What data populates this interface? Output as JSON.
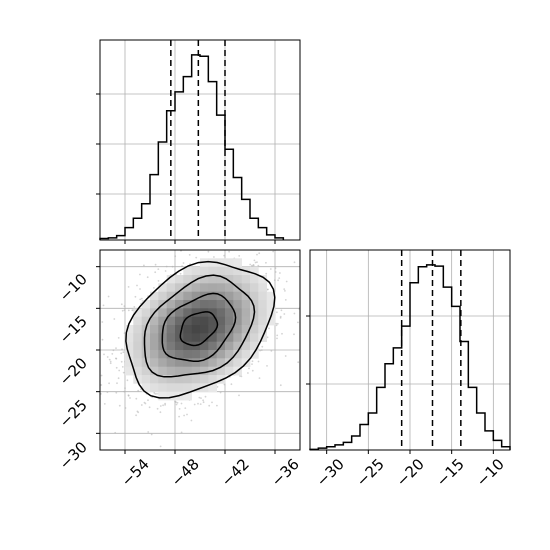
{
  "chart_data": [
    {
      "type": "histogram",
      "panel": "marginal-x",
      "bins": [
        -57.0,
        -56.0,
        -55.0,
        -54.0,
        -53.0,
        -52.0,
        -51.0,
        -50.0,
        -49.0,
        -48.0,
        -47.0,
        -46.0,
        -45.0,
        -44.0,
        -43.0,
        -42.0,
        -41.0,
        -40.0,
        -39.0,
        -38.0,
        -37.0,
        -36.0,
        -35.0
      ],
      "counts": [
        2,
        3,
        6,
        17,
        30,
        50,
        90,
        135,
        178,
        204,
        225,
        255,
        253,
        218,
        172,
        125,
        86,
        56,
        30,
        17,
        7,
        3
      ],
      "quantiles": [
        -48.5,
        -45.2,
        -42.0
      ],
      "xlim": [
        -57,
        -33
      ],
      "grid": true,
      "style": "step",
      "quantile_line": "dashed"
    },
    {
      "type": "histogram",
      "panel": "marginal-y",
      "bins": [
        -32.0,
        -31.0,
        -30.0,
        -29.0,
        -28.0,
        -27.0,
        -26.0,
        -25.0,
        -24.0,
        -23.0,
        -22.0,
        -21.0,
        -20.0,
        -19.0,
        -18.0,
        -17.0,
        -16.0,
        -15.0,
        -14.0,
        -13.0,
        -12.0,
        -11.0,
        -10.0,
        -9.0,
        -8.0
      ],
      "counts": [
        1,
        3,
        5,
        8,
        12,
        22,
        40,
        58,
        98,
        135,
        160,
        194,
        262,
        287,
        290,
        288,
        255,
        225,
        170,
        98,
        58,
        30,
        15,
        5
      ],
      "quantiles": [
        -21.0,
        -17.3,
        -13.9
      ],
      "xlim": [
        -32,
        -8
      ],
      "grid": true,
      "style": "step",
      "quantile_line": "dashed"
    },
    {
      "type": "scatter-density",
      "panel": "joint",
      "x_center": -45.2,
      "y_center": -17.4,
      "x_sigma": 4.4,
      "y_sigma": 4.0,
      "correlation": 0.32,
      "xlim": [
        -57,
        -33
      ],
      "ylim": [
        -32,
        -8
      ],
      "contour_levels": 4,
      "grid": true
    }
  ],
  "ticks": {
    "joint_x": [
      "−54",
      "−48",
      "−42",
      "−36"
    ],
    "joint_y": [
      "−10",
      "−15",
      "−20",
      "−25",
      "−30"
    ],
    "marginal_y_x": [
      "−30",
      "−25",
      "−20",
      "−15",
      "−10"
    ]
  },
  "colors": {
    "line": "#000000",
    "points": "#b0b0b0",
    "grid": "#b0b0b0",
    "frame": "#000000"
  }
}
